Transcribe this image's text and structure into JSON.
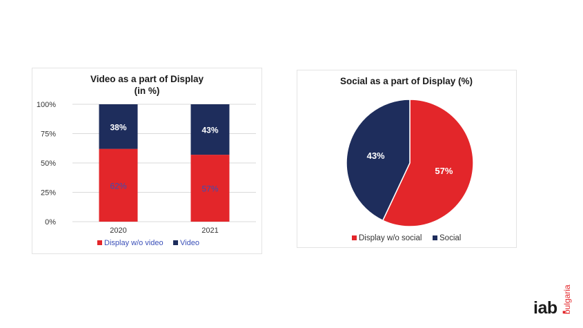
{
  "colors": {
    "red": "#e3262a",
    "navy": "#1e2d5c",
    "grid": "#d9d9d9",
    "text": "#333333",
    "brand_red": "#e3262a"
  },
  "chart_data": [
    {
      "type": "bar",
      "stacked": true,
      "title": "Video as a part of Display",
      "subtitle": "(in %)",
      "categories": [
        "2020",
        "2021"
      ],
      "series": [
        {
          "name": "Display w/o video",
          "values": [
            62,
            57
          ],
          "labels": [
            "62%",
            "57%"
          ],
          "color": "#e3262a"
        },
        {
          "name": "Video",
          "values": [
            38,
            43
          ],
          "labels": [
            "38%",
            "43%"
          ],
          "color": "#1e2d5c"
        }
      ],
      "ylim": [
        0,
        100
      ],
      "yticks": [
        "0%",
        "25%",
        "50%",
        "75%",
        "100%"
      ],
      "grid": true,
      "legend": "bottom"
    },
    {
      "type": "pie",
      "title": "Social as a part of Display (%)",
      "slices": [
        {
          "name": "Display w/o social",
          "value": 57,
          "label": "57%",
          "color": "#e3262a"
        },
        {
          "name": "Social",
          "value": 43,
          "label": "43%",
          "color": "#1e2d5c"
        }
      ],
      "legend": "bottom"
    }
  ],
  "logo": {
    "text": "iab",
    "dot": ".",
    "region": "bulgaria"
  }
}
